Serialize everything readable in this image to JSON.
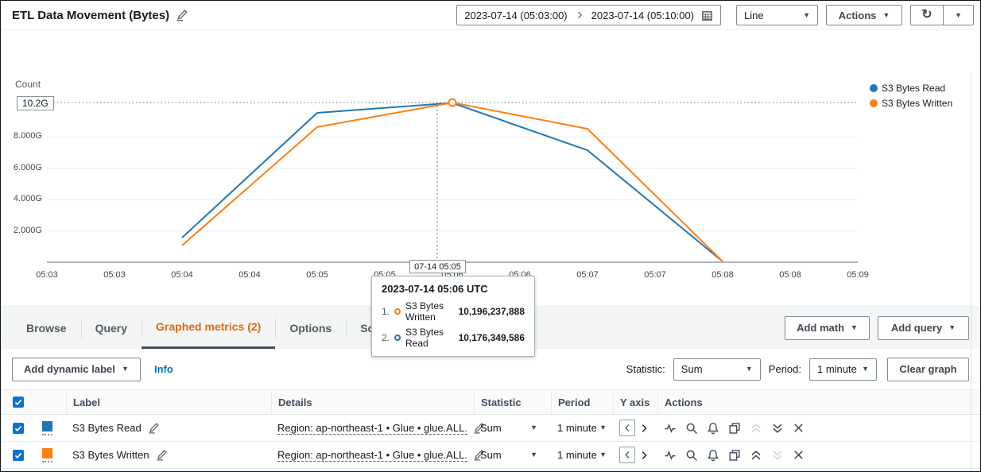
{
  "icons": {
    "caret_down": "▼",
    "refresh": "↻"
  },
  "header": {
    "title": "ETL Data Movement (Bytes)",
    "date_range_start": "2023-07-14 (05:03:00)",
    "date_range_end": "2023-07-14 (05:10:00)",
    "chart_type_value": "Line",
    "actions_label": "Actions"
  },
  "chart_data": {
    "type": "line",
    "ylabel": "Count",
    "y_max_label": "10.2G",
    "y_ticks": [
      "8.000G",
      "6.000G",
      "4.000G",
      "2.000G"
    ],
    "y_tick_values": [
      8,
      6,
      4,
      2
    ],
    "ylim": [
      0,
      10.2
    ],
    "x_tick_labels": [
      "05:03",
      "05:03",
      "05:04",
      "05:04",
      "05:05",
      "05:05",
      "05:06",
      "05:06",
      "05:07",
      "05:07",
      "05:08",
      "05:08",
      "05:09"
    ],
    "x_tick_interval_seconds": 30,
    "grid": true,
    "legend_position": "right",
    "series": [
      {
        "name": "S3 Bytes Read",
        "color": "#1f77b4",
        "points": [
          {
            "t": "05:04",
            "value_g": 1.57
          },
          {
            "t": "05:05",
            "value_g": 9.54
          },
          {
            "t": "05:06",
            "value_g": 10.176349586
          },
          {
            "t": "05:07",
            "value_g": 7.15
          },
          {
            "t": "05:08",
            "value_g": 0.05
          }
        ]
      },
      {
        "name": "S3 Bytes Written",
        "color": "#ff7f0e",
        "points": [
          {
            "t": "05:04",
            "value_g": 1.07
          },
          {
            "t": "05:05",
            "value_g": 8.63
          },
          {
            "t": "05:06",
            "value_g": 10.196237888
          },
          {
            "t": "05:07",
            "value_g": 8.52
          },
          {
            "t": "05:08",
            "value_g": 0.05
          }
        ]
      }
    ],
    "hover_point": {
      "t": "05:06",
      "value_g": 10.196237888,
      "color": "#ff7f0e"
    },
    "crosshair_label": "07-14 05:05"
  },
  "tooltip": {
    "title": "2023-07-14 05:06 UTC",
    "rows": [
      {
        "rank": "1.",
        "name": "S3 Bytes Written",
        "value": "10,196,237,888",
        "color": "#ff7f0e"
      },
      {
        "rank": "2.",
        "name": "S3 Bytes Read",
        "value": "10,176,349,586",
        "color": "#1f77b4"
      }
    ]
  },
  "tabs": {
    "items": [
      "Browse",
      "Query",
      "Graphed metrics (2)",
      "Options",
      "Source"
    ],
    "active": "Graphed metrics (2)",
    "add_math_label": "Add math",
    "add_query_label": "Add query"
  },
  "toolbar": {
    "add_dynamic_label": "Add dynamic label",
    "info_label": "Info",
    "statistic_label": "Statistic:",
    "statistic_value": "Sum",
    "period_label": "Period:",
    "period_value": "1 minute",
    "clear_graph_label": "Clear graph"
  },
  "metrics_table": {
    "columns": [
      "Label",
      "Details",
      "Statistic",
      "Period",
      "Y axis",
      "Actions"
    ],
    "rows": [
      {
        "label": "S3 Bytes Read",
        "color": "#1f77b4",
        "details": "Region: ap-northeast-1 • Glue • glue.ALL.",
        "statistic": "Sum",
        "period": "1 minute"
      },
      {
        "label": "S3 Bytes Written",
        "color": "#ff7f0e",
        "details": "Region: ap-northeast-1 • Glue • glue.ALL.",
        "statistic": "Sum",
        "period": "1 minute"
      }
    ]
  }
}
